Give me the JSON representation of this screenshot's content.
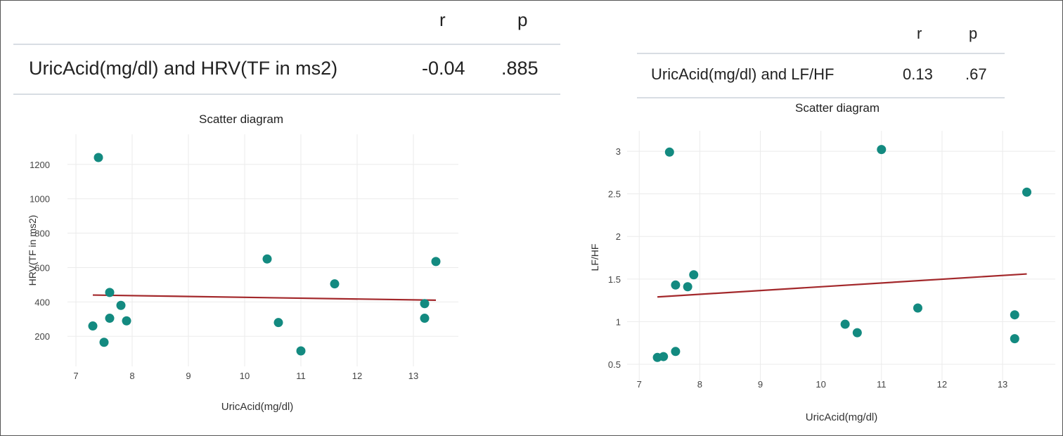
{
  "tables": [
    {
      "headers": {
        "r": "r",
        "p": "p"
      },
      "row": {
        "label": "UricAcid(mg/dl) and HRV(TF in ms2)",
        "r": "-0.04",
        "p": ".885"
      }
    },
    {
      "headers": {
        "r": "r",
        "p": "p"
      },
      "row": {
        "label": "UricAcid(mg/dl) and LF/HF",
        "r": "0.13",
        "p": ".67"
      }
    }
  ],
  "colors": {
    "points": "#138a80",
    "trendline": "#a3282b",
    "grid": "#ebebeb"
  },
  "chart_data": [
    {
      "type": "scatter",
      "title": "Scatter diagram",
      "xlabel": "UricAcid(mg/dl)",
      "ylabel": "HRV(TF in ms2)",
      "xlim": [
        6.85,
        13.8
      ],
      "ylim": [
        25,
        1375
      ],
      "xticks": [
        7,
        8,
        9,
        10,
        11,
        12,
        13
      ],
      "yticks": [
        200,
        400,
        600,
        800,
        1000,
        1200
      ],
      "grid": true,
      "points": [
        {
          "x": 7.3,
          "y": 260
        },
        {
          "x": 7.4,
          "y": 1240
        },
        {
          "x": 7.5,
          "y": 165
        },
        {
          "x": 7.6,
          "y": 455
        },
        {
          "x": 7.6,
          "y": 305
        },
        {
          "x": 7.8,
          "y": 380
        },
        {
          "x": 7.9,
          "y": 290
        },
        {
          "x": 10.4,
          "y": 650
        },
        {
          "x": 10.6,
          "y": 280
        },
        {
          "x": 11.0,
          "y": 115
        },
        {
          "x": 11.6,
          "y": 505
        },
        {
          "x": 13.2,
          "y": 390
        },
        {
          "x": 13.2,
          "y": 305
        },
        {
          "x": 13.4,
          "y": 635
        }
      ],
      "trendline": [
        {
          "x": 7.3,
          "y": 440
        },
        {
          "x": 13.4,
          "y": 410
        }
      ]
    },
    {
      "type": "scatter",
      "title": "Scatter diagram",
      "xlabel": "UricAcid(mg/dl)",
      "ylabel": "LF/HF",
      "xlim": [
        6.8,
        13.87
      ],
      "ylim": [
        0.31,
        3.24
      ],
      "xticks": [
        7,
        8,
        9,
        10,
        11,
        12,
        13
      ],
      "yticks": [
        0.5,
        1,
        1.5,
        2,
        2.5,
        3
      ],
      "grid": true,
      "points": [
        {
          "x": 7.3,
          "y": 0.58
        },
        {
          "x": 7.4,
          "y": 0.59
        },
        {
          "x": 7.5,
          "y": 2.99
        },
        {
          "x": 7.6,
          "y": 1.43
        },
        {
          "x": 7.6,
          "y": 0.65
        },
        {
          "x": 7.8,
          "y": 1.41
        },
        {
          "x": 7.9,
          "y": 1.55
        },
        {
          "x": 10.4,
          "y": 0.97
        },
        {
          "x": 10.6,
          "y": 0.87
        },
        {
          "x": 11.0,
          "y": 3.02
        },
        {
          "x": 11.6,
          "y": 1.16
        },
        {
          "x": 13.2,
          "y": 1.08
        },
        {
          "x": 13.2,
          "y": 0.8
        },
        {
          "x": 13.4,
          "y": 2.52
        }
      ],
      "trendline": [
        {
          "x": 7.3,
          "y": 1.29
        },
        {
          "x": 13.4,
          "y": 1.56
        }
      ]
    }
  ]
}
